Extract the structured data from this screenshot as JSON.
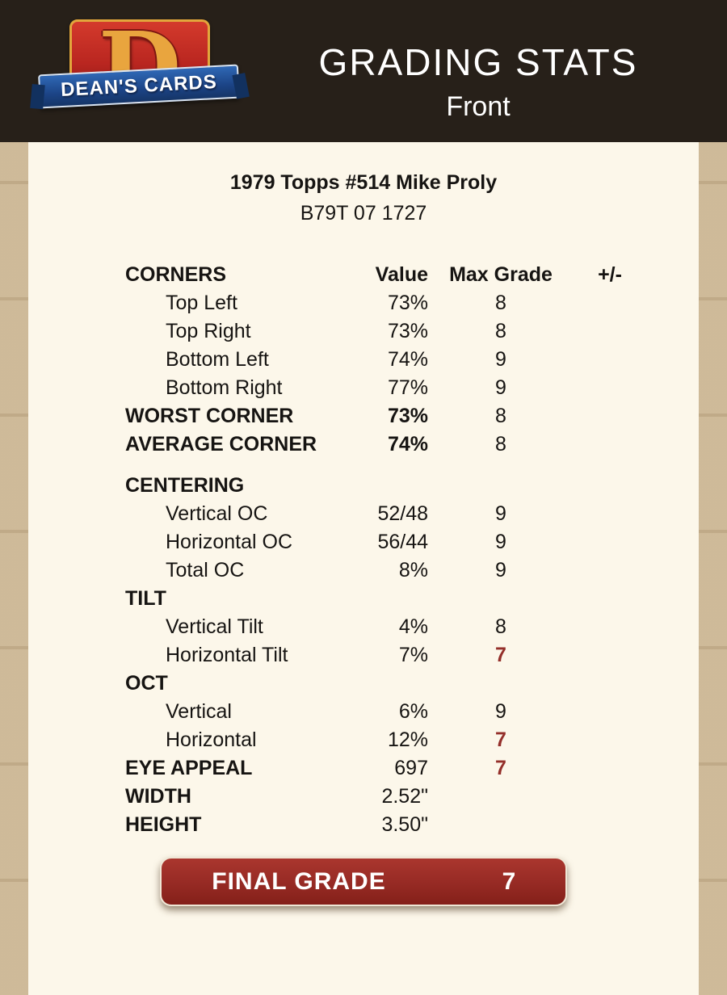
{
  "header": {
    "title": "GRADING STATS",
    "subtitle": "Front",
    "logo_text": "DEAN'S CARDS",
    "logo_letter": "D"
  },
  "card": {
    "title": "1979 Topps #514 Mike Proly",
    "code": "B79T 07 1727"
  },
  "table": {
    "header": {
      "section": "CORNERS",
      "value": "Value",
      "grade": "Max Grade",
      "plus_minus": "+/-"
    },
    "rows": [
      {
        "label": "Top Left",
        "value": "73%",
        "grade": "8",
        "style": "indent"
      },
      {
        "label": "Top Right",
        "value": "73%",
        "grade": "8",
        "style": "indent"
      },
      {
        "label": "Bottom Left",
        "value": "74%",
        "grade": "9",
        "style": "indent"
      },
      {
        "label": "Bottom Right",
        "value": "77%",
        "grade": "9",
        "style": "indent"
      },
      {
        "label": "WORST CORNER",
        "value": "73%",
        "grade": "8",
        "style": "bold"
      },
      {
        "label": "AVERAGE CORNER",
        "value": "74%",
        "grade": "8",
        "style": "bold",
        "gap_after": true
      },
      {
        "label": "CENTERING",
        "value": "",
        "grade": "",
        "style": "section"
      },
      {
        "label": "Vertical OC",
        "value": "52/48",
        "grade": "9",
        "style": "indent"
      },
      {
        "label": "Horizontal OC",
        "value": "56/44",
        "grade": "9",
        "style": "indent"
      },
      {
        "label": "Total OC",
        "value": "8%",
        "grade": "9",
        "style": "indent"
      },
      {
        "label": "TILT",
        "value": "",
        "grade": "",
        "style": "section"
      },
      {
        "label": "Vertical Tilt",
        "value": "4%",
        "grade": "8",
        "style": "indent"
      },
      {
        "label": "Horizontal Tilt",
        "value": "7%",
        "grade": "7",
        "style": "indent",
        "grade_red": true
      },
      {
        "label": "OCT",
        "value": "",
        "grade": "",
        "style": "section"
      },
      {
        "label": "Vertical",
        "value": "6%",
        "grade": "9",
        "style": "indent"
      },
      {
        "label": "Horizontal",
        "value": "12%",
        "grade": "7",
        "style": "indent",
        "grade_red": true
      },
      {
        "label": "EYE APPEAL",
        "value": "697",
        "grade": "7",
        "style": "boldlabel",
        "grade_red": true
      },
      {
        "label": "WIDTH",
        "value": "2.52\"",
        "grade": "",
        "style": "boldlabel"
      },
      {
        "label": "HEIGHT",
        "value": "3.50\"",
        "grade": "",
        "style": "boldlabel"
      }
    ]
  },
  "final_grade": {
    "label": "FINAL GRADE",
    "value": "7"
  },
  "colors": {
    "page_bg": "#bca27a",
    "header_bg": "#272019",
    "panel_bg": "#fcf7ea",
    "accent_red": "#942f2a",
    "logo_red": "#b92620",
    "logo_blue": "#1c4486",
    "logo_gold": "#e9a53e"
  }
}
